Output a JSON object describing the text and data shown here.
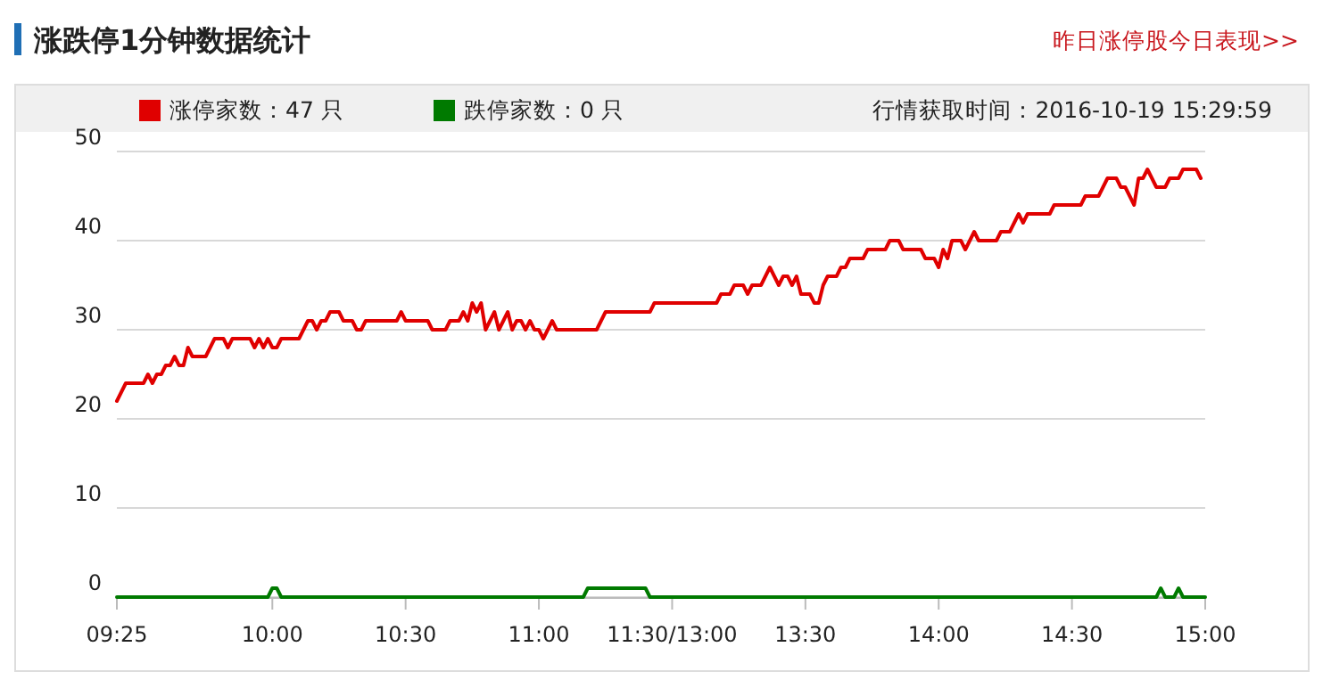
{
  "chart_data": {
    "type": "line",
    "title": "涨跌停1分钟数据统计",
    "annotations": [
      "昨日涨停股今日表现>>",
      "行情获取时间：2016-10-19 15:29:59"
    ],
    "categories": [
      "09:25",
      null,
      null,
      null,
      null,
      null,
      null,
      null,
      null,
      null,
      null,
      null,
      null,
      null,
      null,
      null,
      null,
      null,
      null,
      null,
      null,
      null,
      null,
      null,
      null,
      null,
      null,
      null,
      null,
      null,
      null,
      null,
      null,
      null,
      null,
      "10:00",
      null,
      null,
      null,
      null,
      null,
      null,
      null,
      null,
      null,
      null,
      null,
      null,
      null,
      null,
      null,
      null,
      null,
      null,
      null,
      null,
      null,
      null,
      null,
      null,
      null,
      null,
      null,
      null,
      null,
      "10:30",
      null,
      null,
      null,
      null,
      null,
      null,
      null,
      null,
      null,
      null,
      null,
      null,
      null,
      null,
      null,
      null,
      null,
      null,
      null,
      null,
      null,
      null,
      null,
      null,
      null,
      null,
      null,
      null,
      null,
      "11:00",
      null,
      null,
      null,
      null,
      null,
      null,
      null,
      null,
      null,
      null,
      null,
      null,
      null,
      null,
      null,
      null,
      null,
      null,
      null,
      null,
      null,
      null,
      null,
      null,
      null,
      null,
      null,
      null,
      null,
      "11:30/13:00",
      null,
      null,
      null,
      null,
      null,
      null,
      null,
      null,
      null,
      null,
      null,
      null,
      null,
      null,
      null,
      null,
      null,
      null,
      null,
      null,
      null,
      null,
      null,
      null,
      null,
      null,
      null,
      null,
      null,
      "13:30",
      null,
      null,
      null,
      null,
      null,
      null,
      null,
      null,
      null,
      null,
      null,
      null,
      null,
      null,
      null,
      null,
      null,
      null,
      null,
      null,
      null,
      null,
      null,
      null,
      null,
      null,
      null,
      null,
      null,
      "14:00",
      null,
      null,
      null,
      null,
      null,
      null,
      null,
      null,
      null,
      null,
      null,
      null,
      null,
      null,
      null,
      null,
      null,
      null,
      null,
      null,
      null,
      null,
      null,
      null,
      null,
      null,
      null,
      null,
      null,
      "14:30",
      null,
      null,
      null,
      null,
      null,
      null,
      null,
      null,
      null,
      null,
      null,
      null,
      null,
      null,
      null,
      null,
      null,
      null,
      null,
      null,
      null,
      null,
      null,
      null,
      null,
      null,
      null,
      null,
      null,
      "15:00"
    ],
    "ylim": [
      0,
      50
    ],
    "yticks": [
      0,
      10,
      20,
      30,
      40,
      50
    ],
    "grid": "y",
    "legend": "top",
    "marker": "none",
    "line_style": "solid",
    "series": [
      {
        "name": "涨停家数：47 只",
        "color": "#e00000",
        "values": [
          22,
          23,
          24,
          24,
          24,
          24,
          24,
          25,
          24,
          25,
          25,
          26,
          26,
          27,
          26,
          26,
          28,
          27,
          27,
          27,
          27,
          28,
          29,
          29,
          29,
          28,
          29,
          29,
          29,
          29,
          29,
          28,
          29,
          28,
          29,
          28,
          28,
          29,
          29,
          29,
          29,
          29,
          30,
          31,
          31,
          30,
          31,
          31,
          32,
          32,
          32,
          31,
          31,
          31,
          30,
          30,
          31,
          31,
          31,
          31,
          31,
          31,
          31,
          31,
          32,
          31,
          31,
          31,
          31,
          31,
          31,
          30,
          30,
          30,
          30,
          31,
          31,
          31,
          32,
          31,
          33,
          32,
          33,
          30,
          31,
          32,
          30,
          31,
          32,
          30,
          31,
          31,
          30,
          31,
          30,
          30,
          29,
          30,
          31,
          30,
          30,
          30,
          30,
          30,
          30,
          30,
          30,
          30,
          30,
          31,
          32,
          32,
          32,
          32,
          32,
          32,
          32,
          32,
          32,
          32,
          32,
          33,
          33,
          33,
          33,
          33,
          33,
          33,
          33,
          33,
          33,
          33,
          33,
          33,
          33,
          33,
          34,
          34,
          34,
          35,
          35,
          35,
          34,
          35,
          35,
          35,
          36,
          37,
          36,
          35,
          36,
          36,
          35,
          36,
          34,
          34,
          34,
          33,
          33,
          35,
          36,
          36,
          36,
          37,
          37,
          38,
          38,
          38,
          38,
          39,
          39,
          39,
          39,
          39,
          40,
          40,
          40,
          39,
          39,
          39,
          39,
          39,
          38,
          38,
          38,
          37,
          39,
          38,
          40,
          40,
          40,
          39,
          40,
          41,
          40,
          40,
          40,
          40,
          40,
          41,
          41,
          41,
          42,
          43,
          42,
          43,
          43,
          43,
          43,
          43,
          43,
          44,
          44,
          44,
          44,
          44,
          44,
          44,
          45,
          45,
          45,
          45,
          46,
          47,
          47,
          47,
          46,
          46,
          45,
          44,
          47,
          47,
          48,
          47,
          46,
          46,
          46,
          47,
          47,
          47,
          48,
          48,
          48,
          48,
          47,
          null
        ]
      },
      {
        "name": "跌停家数：0 只",
        "color": "#007a00",
        "values": [
          0,
          0,
          0,
          0,
          0,
          0,
          0,
          0,
          0,
          0,
          0,
          0,
          0,
          0,
          0,
          0,
          0,
          0,
          0,
          0,
          0,
          0,
          0,
          0,
          0,
          0,
          0,
          0,
          0,
          0,
          0,
          0,
          0,
          0,
          0,
          1,
          1,
          0,
          0,
          0,
          0,
          0,
          0,
          0,
          0,
          0,
          0,
          0,
          0,
          0,
          0,
          0,
          0,
          0,
          0,
          0,
          0,
          0,
          0,
          0,
          0,
          0,
          0,
          0,
          0,
          0,
          0,
          0,
          0,
          0,
          0,
          0,
          0,
          0,
          0,
          0,
          0,
          0,
          0,
          0,
          0,
          0,
          0,
          0,
          0,
          0,
          0,
          0,
          0,
          0,
          0,
          0,
          0,
          0,
          0,
          0,
          0,
          0,
          0,
          0,
          0,
          0,
          0,
          0,
          0,
          0,
          1,
          1,
          1,
          1,
          1,
          1,
          1,
          1,
          1,
          1,
          1,
          1,
          1,
          1,
          0,
          0,
          0,
          0,
          0,
          0,
          0,
          0,
          0,
          0,
          0,
          0,
          0,
          0,
          0,
          0,
          0,
          0,
          0,
          0,
          0,
          0,
          0,
          0,
          0,
          0,
          0,
          0,
          0,
          0,
          0,
          0,
          0,
          0,
          0,
          0,
          0,
          0,
          0,
          0,
          0,
          0,
          0,
          0,
          0,
          0,
          0,
          0,
          0,
          0,
          0,
          0,
          0,
          0,
          0,
          0,
          0,
          0,
          0,
          0,
          0,
          0,
          0,
          0,
          0,
          0,
          0,
          0,
          0,
          0,
          0,
          0,
          0,
          0,
          0,
          0,
          0,
          0,
          0,
          0,
          0,
          0,
          0,
          0,
          0,
          0,
          0,
          0,
          0,
          0,
          0,
          0,
          0,
          0,
          0,
          0,
          0,
          0,
          0,
          0,
          0,
          0,
          0,
          0,
          0,
          0,
          0,
          0,
          0,
          0,
          0,
          0,
          0,
          0,
          0,
          1,
          0,
          0,
          0,
          1,
          0,
          0,
          0,
          0,
          0,
          0
        ]
      }
    ]
  }
}
